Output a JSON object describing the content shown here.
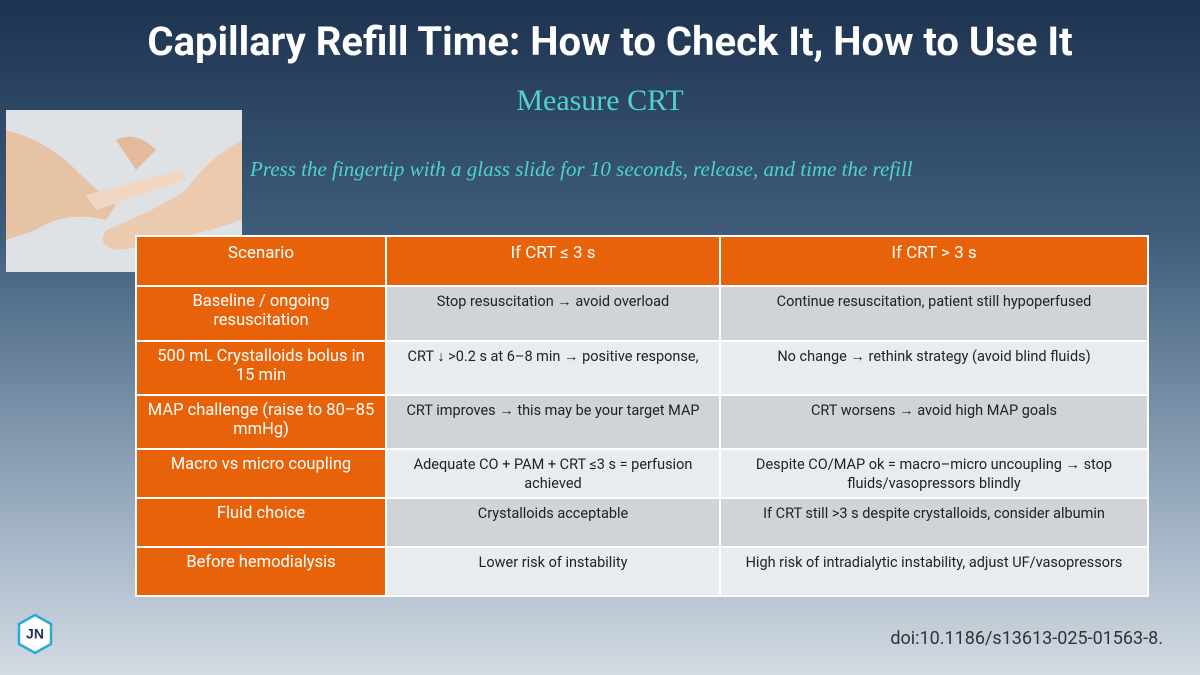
{
  "header": {
    "title": "Capillary Refill Time: How to Check It, How to Use It",
    "subtitle": "Measure CRT",
    "instruction": "Press the fingertip with a glass slide for 10 seconds, release, and time the refill"
  },
  "table": {
    "columns": [
      "Scenario",
      "If CRT ≤ 3 s",
      "If CRT > 3 s"
    ],
    "rows": [
      [
        "Baseline / ongoing resuscitation",
        "Stop resuscitation → avoid overload",
        "Continue resuscitation, patient still hypoperfused"
      ],
      [
        "500 mL Crystalloids bolus in 15 min",
        "CRT ↓ >0.2 s at 6–8 min → positive response,",
        "No change → rethink strategy (avoid blind fluids)"
      ],
      [
        "MAP challenge (raise to 80–85 mmHg)",
        "CRT improves → this may be your target MAP",
        "CRT worsens → avoid high MAP goals"
      ],
      [
        "Macro vs micro coupling",
        "Adequate CO + PAM + CRT ≤3 s = perfusion achieved",
        "Despite CO/MAP ok = macro–micro uncoupling → stop fluids/vasopressors blindly"
      ],
      [
        "Fluid choice",
        "Crystalloids acceptable",
        "If CRT still >3 s despite crystalloids, consider albumin"
      ],
      [
        "Before hemodialysis",
        "Lower risk of instability",
        "High risk of intradialytic instability, adjust UF/vasopressors"
      ]
    ]
  },
  "footer": {
    "logo": "JN",
    "doi": "doi:10.1186/s13613-025-01563-8."
  }
}
